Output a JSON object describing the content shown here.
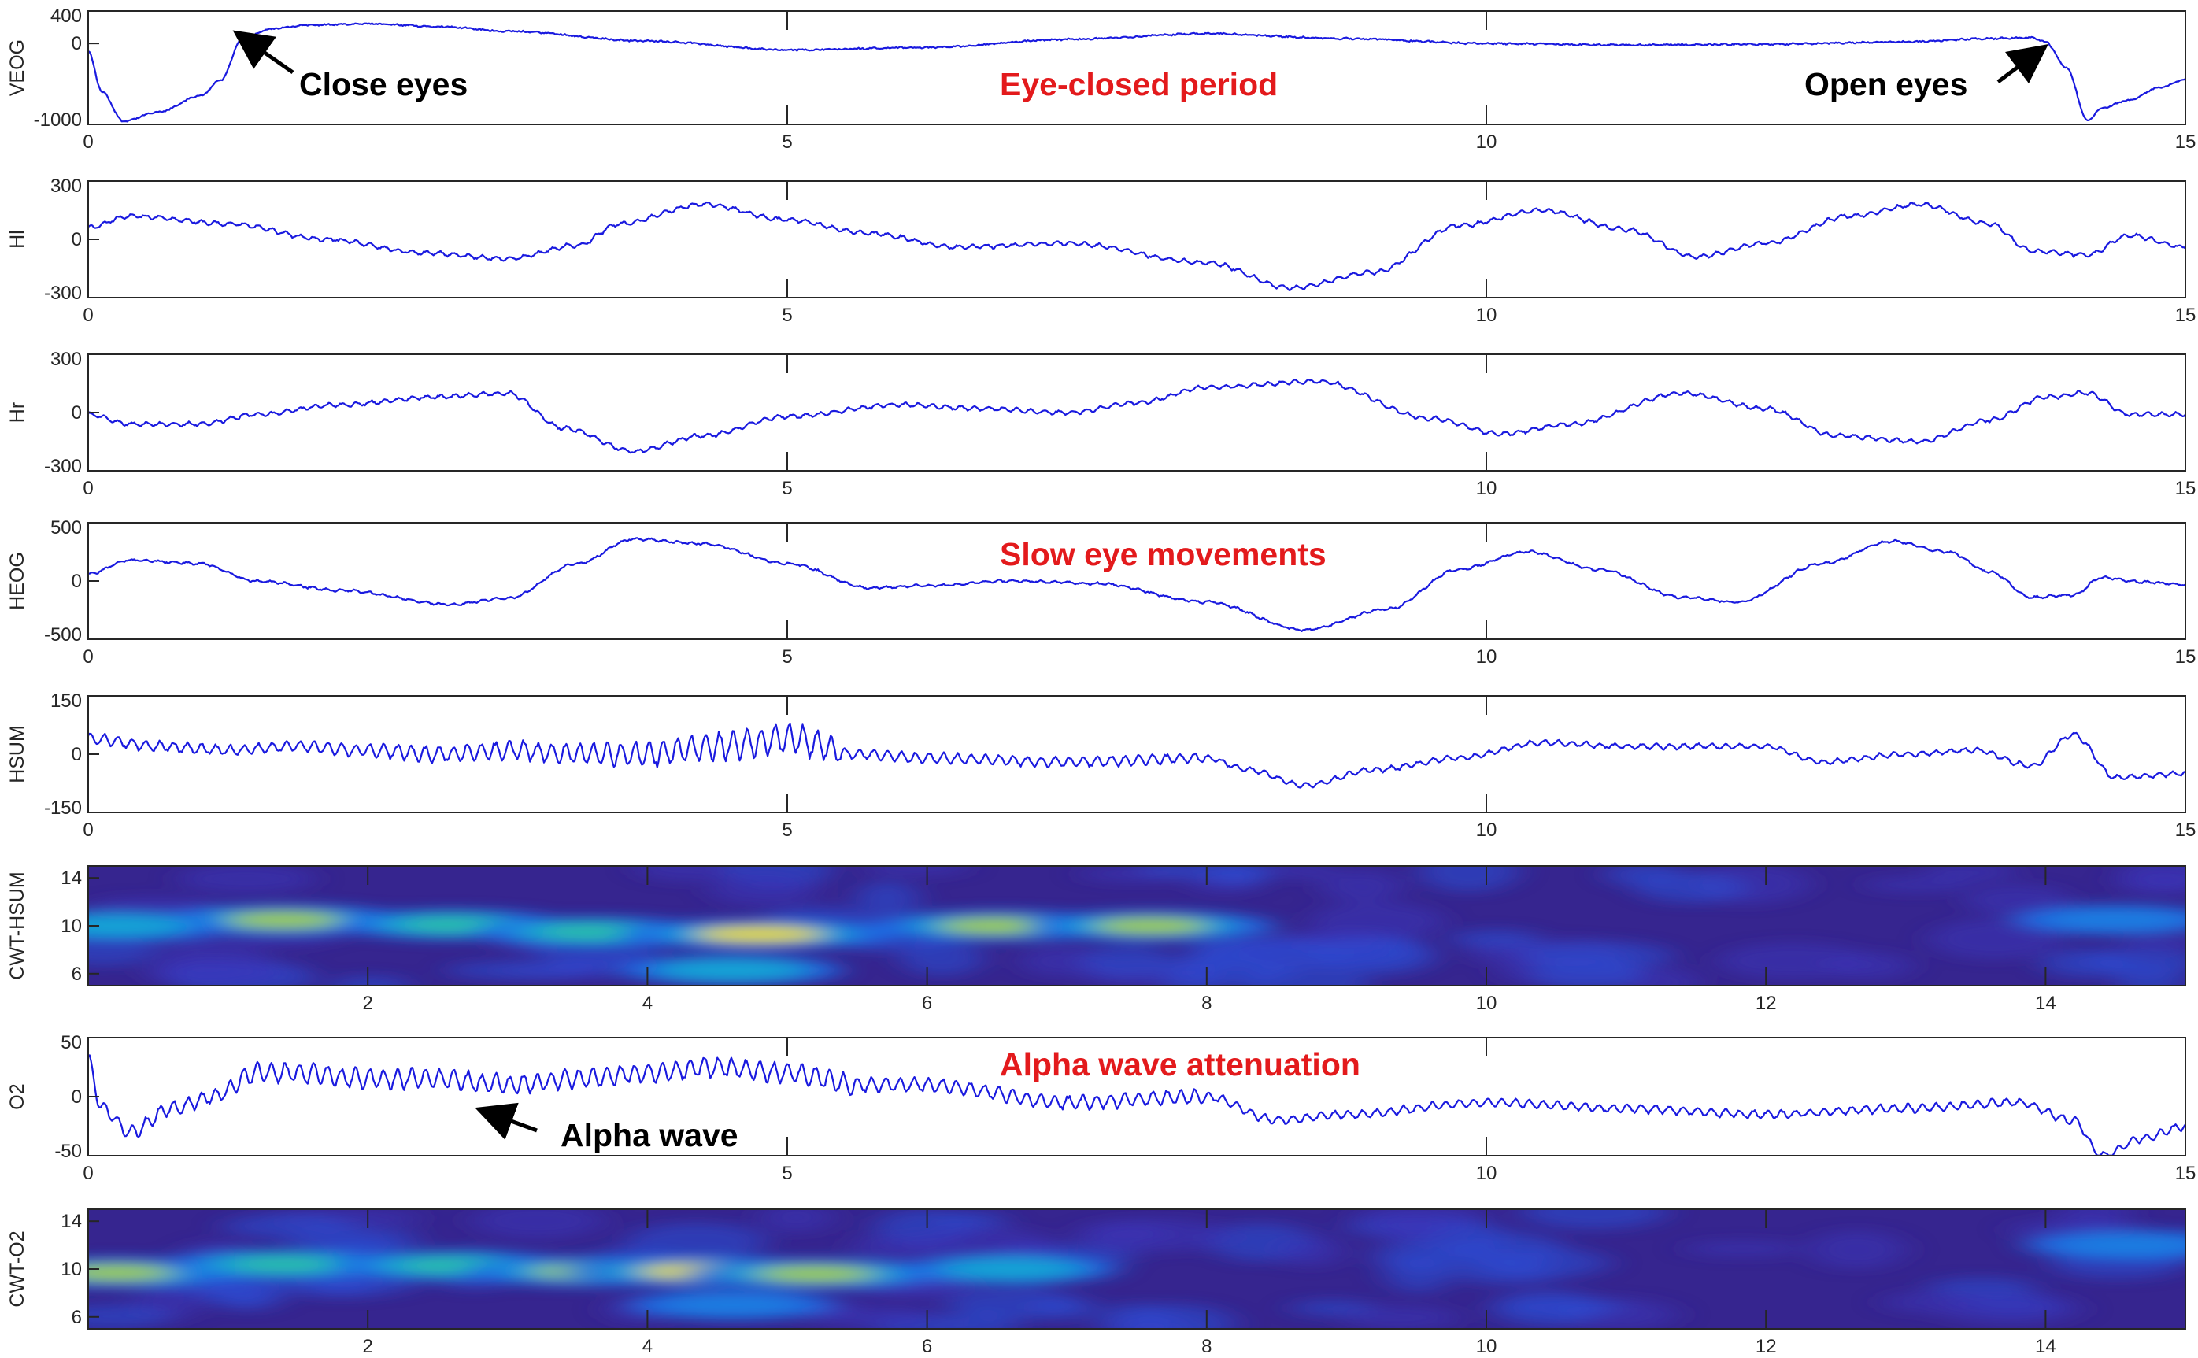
{
  "colors": {
    "trace": "#1a1adf",
    "annotation_red": "#e31a1c",
    "annotation_black": "#000000",
    "axes": "#262626"
  },
  "chart_data": [
    {
      "id": "veog",
      "type": "line",
      "ylabel": "VEOG",
      "xlim": [
        0,
        15
      ],
      "ylim": [
        -1000,
        400
      ],
      "xticks": [
        0,
        5,
        10,
        15
      ],
      "yticks": [
        -1000,
        0,
        400
      ],
      "yticks_shown": [
        "-1000",
        "0",
        "400"
      ],
      "series": [
        {
          "x": [
            0,
            0.1,
            0.25,
            0.5,
            0.8,
            0.95,
            1.1,
            1.3,
            1.6,
            2.0,
            2.5,
            3.0,
            4.0,
            5.0,
            6.0,
            7.0,
            8.0,
            9.0,
            10.0,
            11.0,
            12.0,
            13.0,
            13.6,
            13.9,
            14.0,
            14.15,
            14.3,
            14.4,
            14.6,
            14.8,
            15.0
          ],
          "y": [
            -100,
            -600,
            -960,
            -850,
            -650,
            -450,
            50,
            180,
            230,
            240,
            210,
            150,
            30,
            -80,
            -50,
            50,
            120,
            60,
            0,
            -20,
            -10,
            20,
            60,
            70,
            20,
            -300,
            -950,
            -800,
            -700,
            -550,
            -450
          ]
        }
      ]
    },
    {
      "id": "hl",
      "type": "line",
      "ylabel": "Hl",
      "xlim": [
        0,
        15
      ],
      "ylim": [
        -300,
        300
      ],
      "xticks": [
        0,
        5,
        10,
        15
      ],
      "yticks": [
        -300,
        0,
        300
      ],
      "yticks_shown": [
        "-300",
        "0",
        "300"
      ],
      "series": [
        {
          "x": [
            0,
            0.3,
            1.0,
            1.7,
            2.4,
            3.0,
            3.5,
            3.8,
            4.4,
            5.0,
            5.6,
            6.2,
            7.0,
            8.0,
            8.6,
            9.2,
            9.8,
            10.4,
            11.0,
            11.5,
            12.0,
            12.6,
            13.1,
            13.6,
            13.9,
            14.3,
            14.6,
            15.0
          ],
          "y": [
            60,
            120,
            80,
            0,
            -70,
            -100,
            -30,
            80,
            180,
            100,
            30,
            -40,
            -20,
            -120,
            -250,
            -170,
            70,
            150,
            50,
            -90,
            -20,
            120,
            180,
            80,
            -60,
            -80,
            20,
            -40
          ]
        }
      ]
    },
    {
      "id": "hr",
      "type": "line",
      "ylabel": "Hr",
      "xlim": [
        0,
        15
      ],
      "ylim": [
        -300,
        300
      ],
      "xticks": [
        0,
        5,
        10,
        15
      ],
      "yticks": [
        -300,
        0,
        300
      ],
      "yticks_shown": [
        "-300",
        "0",
        "300"
      ],
      "series": [
        {
          "x": [
            0,
            0.3,
            0.8,
            1.2,
            1.8,
            2.5,
            3.0,
            3.4,
            3.9,
            4.4,
            5.0,
            5.8,
            6.4,
            7.0,
            7.5,
            8.0,
            8.8,
            9.6,
            10.1,
            10.6,
            11.4,
            12.0,
            12.5,
            13.1,
            13.6,
            14.0,
            14.3,
            14.6,
            15.0
          ],
          "y": [
            -10,
            -60,
            -60,
            -10,
            40,
            80,
            100,
            -80,
            -200,
            -120,
            -20,
            40,
            20,
            0,
            50,
            130,
            160,
            -30,
            -110,
            -60,
            100,
            20,
            -120,
            -150,
            -40,
            80,
            100,
            -10,
            -10
          ]
        }
      ]
    },
    {
      "id": "heog",
      "type": "line",
      "ylabel": "HEOG",
      "xlim": [
        0,
        15
      ],
      "ylim": [
        -500,
        500
      ],
      "xticks": [
        0,
        5,
        10,
        15
      ],
      "yticks": [
        -500,
        0,
        500
      ],
      "yticks_shown": [
        "-500",
        "0",
        "500"
      ],
      "series": [
        {
          "x": [
            0,
            0.3,
            0.8,
            1.2,
            1.8,
            2.6,
            3.0,
            3.5,
            3.9,
            4.4,
            5.0,
            5.6,
            6.0,
            6.6,
            7.2,
            8.0,
            8.7,
            9.3,
            9.8,
            10.3,
            10.8,
            11.4,
            11.8,
            12.4,
            12.9,
            13.3,
            13.6,
            13.9,
            14.2,
            14.4,
            14.7,
            15.0
          ],
          "y": [
            60,
            180,
            150,
            0,
            -80,
            -200,
            -150,
            150,
            360,
            320,
            150,
            -60,
            -40,
            0,
            -20,
            -180,
            -420,
            -240,
            100,
            250,
            100,
            -140,
            -180,
            150,
            340,
            250,
            80,
            -140,
            -120,
            30,
            -10,
            -30
          ]
        }
      ]
    },
    {
      "id": "hsum",
      "type": "line",
      "ylabel": "HSUM",
      "xlim": [
        0,
        15
      ],
      "ylim": [
        -150,
        150
      ],
      "xticks": [
        0,
        5,
        10,
        15
      ],
      "yticks": [
        -150,
        0,
        150
      ],
      "yticks_shown": [
        "-150",
        "0",
        "150"
      ],
      "series": [
        {
          "x": [
            0,
            0.5,
            1.0,
            1.5,
            2.0,
            2.5,
            3.0,
            3.5,
            4.0,
            4.5,
            5.0,
            5.5,
            6.0,
            7.0,
            8.0,
            8.3,
            8.7,
            9.2,
            9.8,
            10.4,
            11.0,
            12.0,
            12.4,
            13.0,
            13.5,
            13.9,
            14.2,
            14.5,
            15.0
          ],
          "y": [
            40,
            20,
            10,
            20,
            10,
            0,
            10,
            0,
            0,
            20,
            40,
            0,
            -10,
            -20,
            -10,
            -40,
            -80,
            -40,
            -10,
            30,
            20,
            20,
            -20,
            0,
            10,
            -30,
            50,
            -60,
            -50
          ]
        }
      ]
    },
    {
      "id": "cwt_hsum",
      "type": "heatmap",
      "ylabel": "CWT-HSUM",
      "xlim": [
        0,
        15
      ],
      "ylim": [
        5,
        15
      ],
      "xticks": [
        2,
        4,
        6,
        8,
        10,
        12,
        14
      ],
      "yticks": [
        6,
        10,
        14
      ],
      "colormap": "parula",
      "hotspots": [
        {
          "t": 1.4,
          "f": 10.5,
          "z": 0.75
        },
        {
          "t": 2.6,
          "f": 10.1,
          "z": 0.55
        },
        {
          "t": 3.6,
          "f": 9.5,
          "z": 0.6
        },
        {
          "t": 4.8,
          "f": 9.3,
          "z": 1.0
        },
        {
          "t": 4.6,
          "f": 6.3,
          "z": 0.5
        },
        {
          "t": 6.5,
          "f": 10.0,
          "z": 0.8
        },
        {
          "t": 7.6,
          "f": 10.0,
          "z": 0.72
        },
        {
          "t": 0.2,
          "f": 10.0,
          "z": 0.45
        },
        {
          "t": 14.5,
          "f": 10.5,
          "z": 0.35
        }
      ]
    },
    {
      "id": "o2",
      "type": "line",
      "ylabel": "O2",
      "xlim": [
        0,
        15
      ],
      "ylim": [
        -50,
        50
      ],
      "xticks": [
        0,
        5,
        10,
        15
      ],
      "yticks": [
        -50,
        0,
        50
      ],
      "yticks_shown": [
        "-50",
        "0",
        "50"
      ],
      "series": [
        {
          "x": [
            0,
            0.1,
            0.3,
            0.6,
            0.9,
            1.2,
            1.5,
            2.0,
            2.5,
            3.0,
            3.5,
            4.0,
            4.5,
            5.0,
            5.5,
            6.0,
            7.0,
            8.0,
            8.5,
            9.0,
            10.0,
            11.0,
            12.0,
            13.0,
            13.8,
            14.2,
            14.4,
            14.7,
            15.0
          ],
          "y": [
            30,
            -10,
            -30,
            -10,
            0,
            20,
            20,
            15,
            15,
            10,
            15,
            20,
            25,
            20,
            10,
            10,
            -5,
            0,
            -20,
            -15,
            -5,
            -10,
            -15,
            -10,
            -5,
            -20,
            -50,
            -35,
            -25
          ]
        }
      ]
    },
    {
      "id": "cwt_o2",
      "type": "heatmap",
      "ylabel": "CWT-O2",
      "xlim": [
        0,
        15
      ],
      "ylim": [
        5,
        15
      ],
      "xticks": [
        2,
        4,
        6,
        8,
        10,
        12,
        14
      ],
      "yticks": [
        6,
        10,
        14
      ],
      "colormap": "parula",
      "hotspots": [
        {
          "t": 0.2,
          "f": 9.7,
          "z": 0.75
        },
        {
          "t": 1.4,
          "f": 10.4,
          "z": 0.65
        },
        {
          "t": 2.6,
          "f": 10.3,
          "z": 0.62
        },
        {
          "t": 3.6,
          "f": 9.8,
          "z": 0.78
        },
        {
          "t": 4.4,
          "f": 9.8,
          "z": 1.0
        },
        {
          "t": 5.2,
          "f": 9.6,
          "z": 0.82
        },
        {
          "t": 6.6,
          "f": 10.0,
          "z": 0.42
        },
        {
          "t": 4.6,
          "f": 7.0,
          "z": 0.35
        },
        {
          "t": 14.6,
          "f": 12.0,
          "z": 0.38
        }
      ]
    }
  ],
  "annotations": {
    "close_eyes": "Close eyes",
    "open_eyes": "Open eyes",
    "eye_closed_period": "Eye-closed period",
    "slow_eye_movements": "Slow eye movements",
    "alpha_wave_attenuation": "Alpha wave attenuation",
    "alpha_wave": "Alpha wave"
  }
}
